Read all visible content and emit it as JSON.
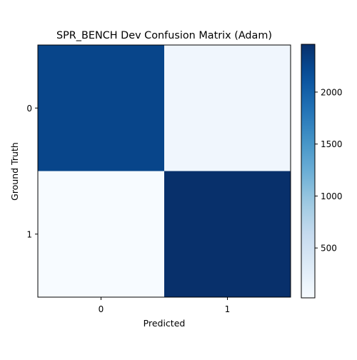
{
  "chart_data": {
    "type": "heatmap",
    "title": "SPR_BENCH Dev Confusion Matrix (Adam)",
    "xlabel": "Predicted",
    "ylabel": "Ground Truth",
    "x_categories": [
      "0",
      "1"
    ],
    "y_categories": [
      "0",
      "1"
    ],
    "values": [
      [
        2270,
        110
      ],
      [
        20,
        2460
      ]
    ],
    "colormap": "Blues",
    "color_range": [
      20,
      2460
    ],
    "colorbar": {
      "ticks": [
        500,
        1000,
        1500,
        2000
      ],
      "tick_labels": [
        "500",
        "1000",
        "1500",
        "2000"
      ]
    },
    "grid": false,
    "legend": "none"
  }
}
